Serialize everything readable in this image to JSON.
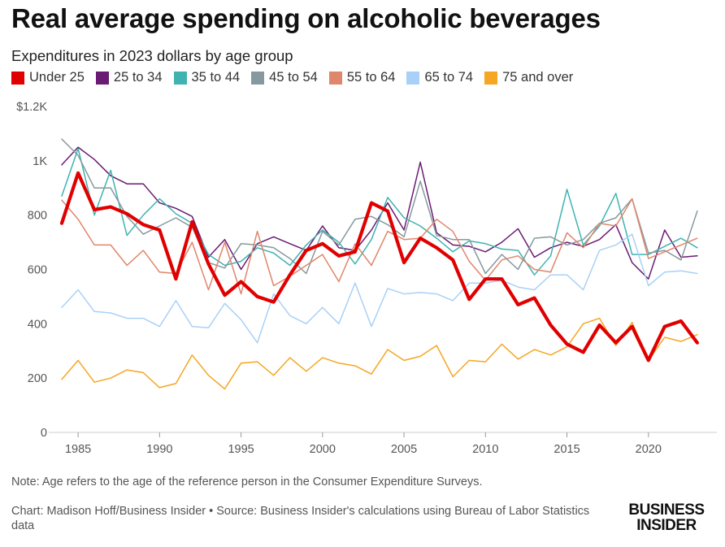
{
  "title": "Real average spending on alcoholic beverages",
  "subtitle": "Expenditures in 2023 dollars by age group",
  "note": "Note: Age refers to the age of the reference person in the Consumer Expenditure Surveys.",
  "credit": "Chart: Madison Hoff/Business Insider • Source: Business Insider's calculations using Bureau of Labor Statistics data",
  "logo": {
    "line1": "BUSINESS",
    "line2": "INSIDER"
  },
  "chart_data": {
    "type": "line",
    "title": "Real average spending on alcoholic beverages",
    "subtitle": "Expenditures in 2023 dollars by age group",
    "xlabel": "",
    "ylabel": "",
    "x": [
      1984,
      1985,
      1986,
      1987,
      1988,
      1989,
      1990,
      1991,
      1992,
      1993,
      1994,
      1995,
      1996,
      1997,
      1998,
      1999,
      2000,
      2001,
      2002,
      2003,
      2004,
      2005,
      2006,
      2007,
      2008,
      2009,
      2010,
      2011,
      2012,
      2013,
      2014,
      2015,
      2016,
      2017,
      2018,
      2019,
      2020,
      2021,
      2022,
      2023
    ],
    "xlim": [
      1983.2,
      2024.2
    ],
    "ylim": [
      0,
      1200
    ],
    "y_ticks": [
      0,
      200,
      400,
      600,
      800,
      1000,
      1200
    ],
    "y_tick_labels": [
      "0",
      "200",
      "400",
      "600",
      "800",
      "1K",
      "$1.2K"
    ],
    "x_ticks": [
      1985,
      1990,
      1995,
      2000,
      2005,
      2010,
      2015,
      2020
    ],
    "x_tick_labels": [
      "1985",
      "1990",
      "1995",
      "2000",
      "2005",
      "2010",
      "2015",
      "2020"
    ],
    "grid": false,
    "legend_position": "top",
    "series": [
      {
        "name": "Under 25",
        "color": "#e00000",
        "width": 4.2,
        "values": [
          770,
          955,
          820,
          830,
          805,
          765,
          745,
          565,
          775,
          620,
          505,
          555,
          500,
          480,
          580,
          670,
          695,
          650,
          665,
          845,
          815,
          625,
          715,
          680,
          635,
          490,
          565,
          565,
          470,
          495,
          395,
          325,
          295,
          395,
          330,
          390,
          265,
          390,
          410,
          330
        ]
      },
      {
        "name": "25 to 34",
        "color": "#6a1b73",
        "width": 1.5,
        "values": [
          985,
          1050,
          1005,
          945,
          915,
          915,
          845,
          825,
          795,
          645,
          710,
          600,
          695,
          720,
          695,
          670,
          760,
          680,
          670,
          745,
          845,
          745,
          995,
          735,
          690,
          685,
          665,
          700,
          750,
          645,
          680,
          700,
          685,
          710,
          765,
          625,
          565,
          745,
          645,
          650
        ]
      },
      {
        "name": "35 to 44",
        "color": "#3fb3b0",
        "width": 1.5,
        "values": [
          870,
          1045,
          800,
          965,
          725,
          800,
          860,
          805,
          770,
          655,
          615,
          630,
          680,
          660,
          615,
          690,
          745,
          700,
          620,
          710,
          865,
          790,
          760,
          715,
          665,
          705,
          695,
          675,
          670,
          580,
          650,
          895,
          690,
          760,
          880,
          655,
          655,
          685,
          715,
          680
        ]
      },
      {
        "name": "45 to 54",
        "color": "#86999e",
        "width": 1.5,
        "values": [
          1080,
          1020,
          900,
          900,
          795,
          730,
          760,
          790,
          755,
          625,
          605,
          695,
          690,
          680,
          640,
          585,
          740,
          690,
          785,
          795,
          765,
          720,
          925,
          725,
          710,
          710,
          585,
          655,
          600,
          715,
          720,
          690,
          710,
          770,
          790,
          860,
          660,
          670,
          635,
          815
        ]
      },
      {
        "name": "55 to 64",
        "color": "#e0866b",
        "width": 1.5,
        "values": [
          855,
          785,
          690,
          690,
          615,
          670,
          590,
          585,
          700,
          525,
          700,
          510,
          740,
          540,
          575,
          615,
          655,
          555,
          695,
          615,
          740,
          710,
          715,
          785,
          740,
          630,
          560,
          635,
          650,
          600,
          590,
          735,
          680,
          770,
          760,
          860,
          640,
          665,
          690,
          715
        ]
      },
      {
        "name": "65 to 74",
        "color": "#a9d1f7",
        "width": 1.5,
        "values": [
          460,
          525,
          445,
          440,
          420,
          420,
          390,
          485,
          390,
          385,
          475,
          415,
          330,
          510,
          430,
          400,
          460,
          400,
          550,
          390,
          530,
          510,
          515,
          510,
          485,
          550,
          550,
          560,
          535,
          525,
          580,
          580,
          525,
          670,
          690,
          730,
          540,
          590,
          595,
          585
        ]
      },
      {
        "name": "75 and over",
        "color": "#f5a623",
        "width": 1.5,
        "values": [
          195,
          265,
          185,
          200,
          230,
          220,
          165,
          180,
          285,
          210,
          160,
          255,
          260,
          210,
          275,
          225,
          275,
          255,
          245,
          215,
          305,
          265,
          280,
          320,
          205,
          265,
          260,
          325,
          270,
          305,
          285,
          315,
          400,
          420,
          320,
          405,
          265,
          350,
          335,
          360
        ]
      }
    ]
  }
}
